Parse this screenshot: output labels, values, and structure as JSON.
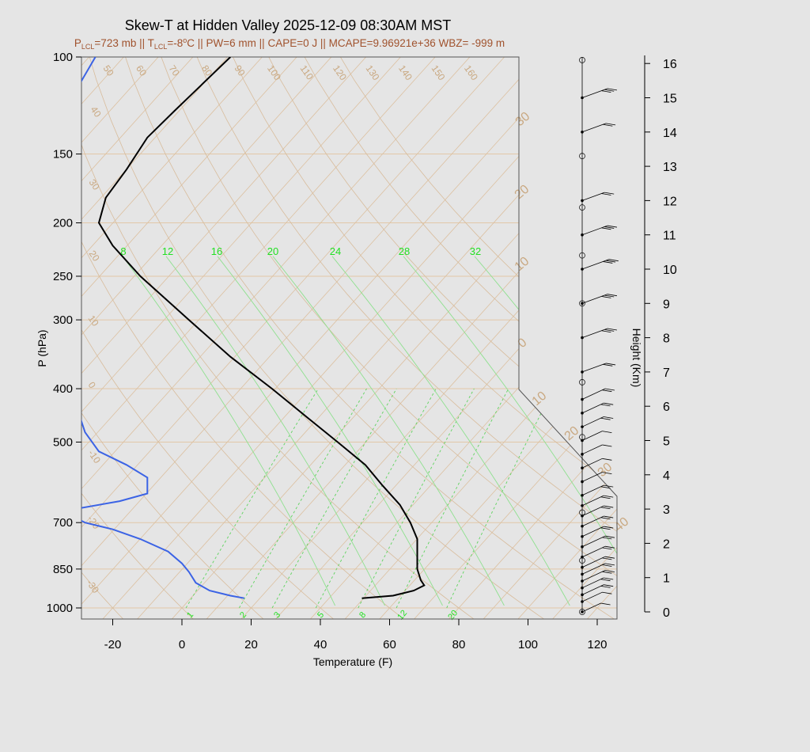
{
  "title": "Skew-T at Hidden Valley 2025-12-09 08:30AM MST",
  "subtitle": {
    "p_lcl_prefix": "P",
    "p_lcl_sub": "LCL",
    "p_lcl_value": "=723 mb || T",
    "t_lcl_sub": "LCL",
    "t_lcl_value": "=-8",
    "deg": "o",
    "rest": "C || PW=6 mm || CAPE=0 J || MCAPE=9.96921e+36 WBZ= -999 m"
  },
  "chart_data": {
    "type": "line",
    "title": "Skew-T at Hidden Valley 2025-12-09 08:30AM MST",
    "xlabel": "Temperature (F)",
    "ylabel": "P (hPa)",
    "y2label": "Height (Km)",
    "x_ticks": [
      "-20",
      "0",
      "20",
      "40",
      "60",
      "80",
      "100",
      "120"
    ],
    "y_ticks": [
      "100",
      "150",
      "200",
      "250",
      "300",
      "400",
      "500",
      "700",
      "850",
      "1000"
    ],
    "height_ticks": [
      "0",
      "1",
      "2",
      "3",
      "4",
      "5",
      "6",
      "7",
      "8",
      "9",
      "10",
      "11",
      "12",
      "13",
      "14",
      "15",
      "16"
    ],
    "isotherm_labels": [
      "-30",
      "-20",
      "-10",
      "0",
      "10",
      "20",
      "30",
      "40",
      "50",
      "60",
      "70",
      "80",
      "90",
      "100",
      "110",
      "120",
      "130",
      "140",
      "150",
      "160"
    ],
    "mixing_ratio_labels_top": [
      "8",
      "12",
      "16",
      "20",
      "24",
      "28",
      "32"
    ],
    "mixing_ratio_labels_bottom": [
      "1",
      "2",
      "3",
      "5",
      "8",
      "12",
      "20"
    ],
    "right_isotherm_labels": [
      "30",
      "20",
      "10",
      "0",
      "10",
      "20",
      "30",
      "40"
    ],
    "series": [
      {
        "name": "Temperature",
        "color": "#000000",
        "pressure": [
          960,
          950,
          930,
          910,
          890,
          850,
          800,
          750,
          700,
          650,
          600,
          550,
          500,
          450,
          400,
          350,
          300,
          250,
          220,
          200,
          180,
          160,
          140,
          125,
          100
        ],
        "temp_f": [
          52,
          61,
          67,
          70,
          69,
          68,
          68,
          68,
          66,
          63,
          58,
          53,
          45,
          36,
          26,
          14,
          2,
          -12,
          -20,
          -24,
          -22,
          -16,
          -10,
          -2,
          14
        ]
      },
      {
        "name": "Dew point",
        "color": "#3b63e5",
        "pressure": [
          960,
          950,
          930,
          900,
          860,
          830,
          790,
          750,
          720,
          700,
          680,
          660,
          640,
          620,
          580,
          550,
          520,
          480,
          440,
          400,
          360,
          320,
          290,
          260,
          230,
          200,
          180,
          160,
          140,
          125,
          100
        ],
        "temp_f": [
          18,
          14,
          8,
          4,
          2,
          0,
          -4,
          -12,
          -20,
          -28,
          -32,
          -30,
          -18,
          -10,
          -10,
          -16,
          -24,
          -28,
          -30,
          -32,
          -34,
          -38,
          -42,
          -44,
          -44,
          -43,
          -42,
          -38,
          -35,
          -34,
          -25
        ]
      }
    ],
    "wind_profile": {
      "description": "wind barbs along right side from 0 to 16 km",
      "heights_km": [
        0.0,
        0.3,
        0.5,
        0.7,
        0.9,
        1.1,
        1.3,
        1.6,
        1.9,
        2.2,
        2.5,
        2.8,
        3.1,
        3.4,
        3.8,
        4.2,
        4.6,
        5.0,
        5.4,
        5.8,
        6.2,
        7.0,
        8.0,
        9.0,
        10.0,
        11.0,
        12.0,
        14.0,
        15.0
      ],
      "speed_kt": [
        5,
        10,
        15,
        15,
        20,
        20,
        20,
        20,
        20,
        15,
        15,
        15,
        15,
        15,
        10,
        10,
        10,
        10,
        15,
        15,
        20,
        20,
        25,
        25,
        30,
        25,
        15,
        20,
        25
      ]
    }
  }
}
